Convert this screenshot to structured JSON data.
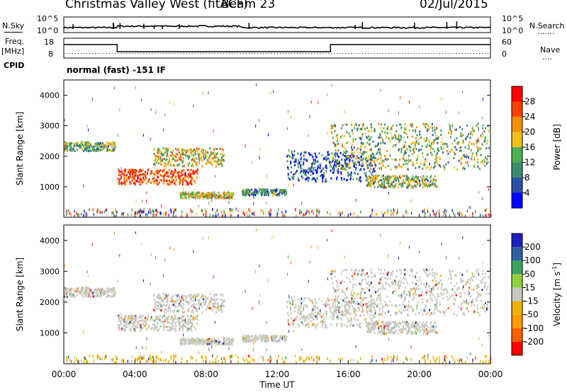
{
  "header": {
    "station": "Christmas Valley West (fitACF)",
    "beam": "Beam 23",
    "date": "02/Jul/2015"
  },
  "left_labels": {
    "nsky": "N.Sky",
    "freq": "Freq.",
    "mhz": "[MHz]",
    "cpid": "CPID"
  },
  "right_labels": {
    "nsearch": "N.Search",
    "nsearch_dots": ".......",
    "nave": "Nave",
    "nave_dots": "...."
  },
  "noise_panel": {
    "left_ticks": [
      "10^5",
      "10^0"
    ],
    "right_ticks": [
      "10^5",
      "10^0"
    ]
  },
  "freq_panel": {
    "left_ticks": [
      "18",
      "8"
    ],
    "right_ticks": [
      "60",
      "0"
    ]
  },
  "cpid_text": "normal (fast) -151 IF",
  "colors": {
    "power": [
      "#0000ff",
      "#2a50a8",
      "#3f8a6e",
      "#4caf50",
      "#f0c020",
      "#f09000",
      "#ff4000",
      "#ff0000"
    ],
    "velocity": [
      "#ff0000",
      "#ff6000",
      "#ff9a00",
      "#f0b000",
      "#c8c8c0",
      "#90d040",
      "#40a060",
      "#3060a0",
      "#2020c0"
    ],
    "ground": "#c8c8c0"
  },
  "chart_data": [
    {
      "type": "heatmap",
      "name": "power",
      "ylabel": "Slant Range [km]",
      "yticks": [
        "1000",
        "2000",
        "3000",
        "4000"
      ],
      "ylim": [
        0,
        4500
      ],
      "xlim": [
        0,
        24
      ],
      "colorbar_label": "Power [dB]",
      "colorbar_ticks": [
        "4",
        "8",
        "12",
        "16",
        "20",
        "24",
        "28"
      ],
      "features": [
        {
          "t": [
            0,
            2.9
          ],
          "r": [
            2200,
            2500
          ],
          "level": 3
        },
        {
          "t": [
            3.0,
            7.5
          ],
          "r": [
            1100,
            1600
          ],
          "level": 6
        },
        {
          "t": [
            5.0,
            9.0
          ],
          "r": [
            1700,
            2300
          ],
          "level": 4
        },
        {
          "t": [
            6.5,
            9.5
          ],
          "r": [
            650,
            850
          ],
          "level": 4
        },
        {
          "t": [
            10.0,
            12.5
          ],
          "r": [
            750,
            950
          ],
          "level": 2
        },
        {
          "t": [
            12.5,
            17.5
          ],
          "r": [
            1200,
            2200
          ],
          "level": 1
        },
        {
          "t": [
            15.0,
            23.9
          ],
          "r": [
            1600,
            3100
          ],
          "level": 3
        },
        {
          "t": [
            17.0,
            21.0
          ],
          "r": [
            1000,
            1400
          ],
          "level": 3
        }
      ]
    },
    {
      "type": "heatmap",
      "name": "velocity",
      "ylabel": "Slant Range [km]",
      "yticks": [
        "1000",
        "2000",
        "3000",
        "4000"
      ],
      "ylim": [
        0,
        4500
      ],
      "xlim": [
        0,
        24
      ],
      "xlabel": "Time UT",
      "xticks": [
        "00:00",
        "04:00",
        "08:00",
        "12:00",
        "16:00",
        "20:00",
        "00:00"
      ],
      "colorbar_label": "Velocity [m s",
      "colorbar_label_sup": "-1",
      "colorbar_label_end": "]",
      "colorbar_ticks": [
        "-200",
        "-100",
        "-50",
        "-15",
        "15",
        "50",
        "100",
        "200"
      ]
    }
  ]
}
